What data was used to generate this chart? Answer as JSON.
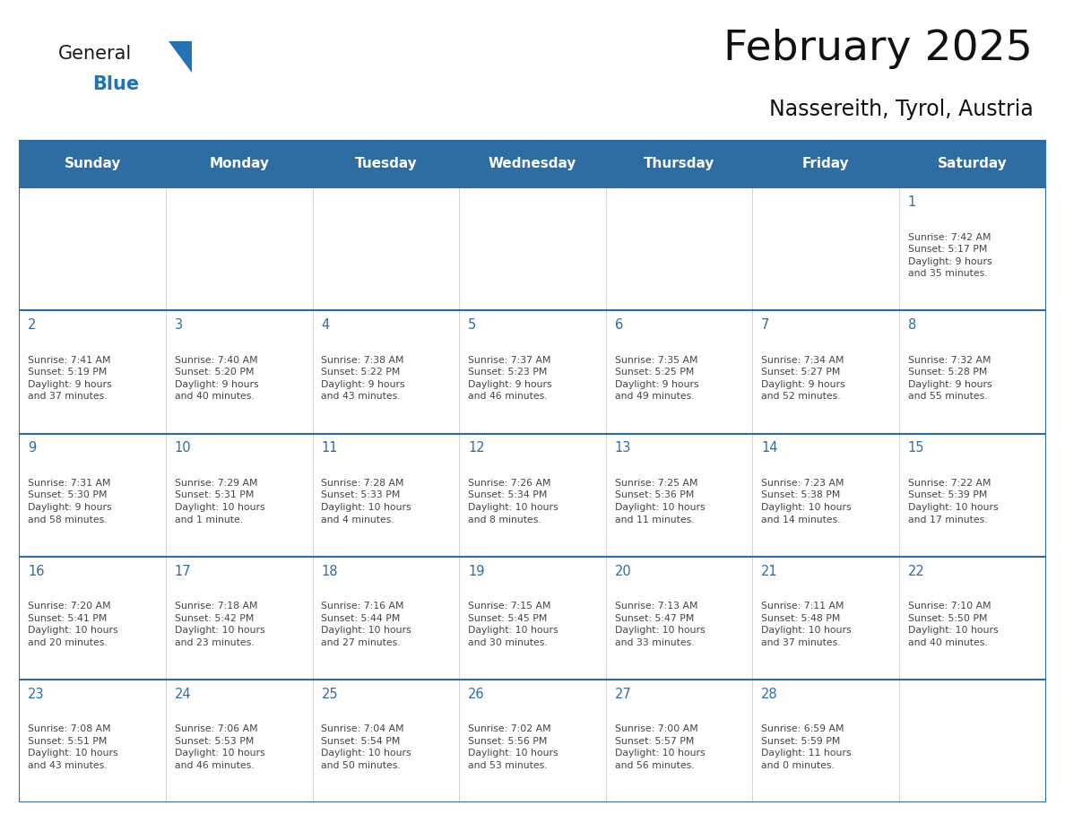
{
  "title": "February 2025",
  "subtitle": "Nassereith, Tyrol, Austria",
  "header_bg": "#2E6DA4",
  "header_text_color": "#FFFFFF",
  "cell_bg": "#FFFFFF",
  "day_number_color": "#2E6DA4",
  "text_color": "#444444",
  "week_border_color": "#2E6DA4",
  "cell_border_color": "#CCCCCC",
  "days_of_week": [
    "Sunday",
    "Monday",
    "Tuesday",
    "Wednesday",
    "Thursday",
    "Friday",
    "Saturday"
  ],
  "weeks": [
    [
      {
        "day": null,
        "info": null
      },
      {
        "day": null,
        "info": null
      },
      {
        "day": null,
        "info": null
      },
      {
        "day": null,
        "info": null
      },
      {
        "day": null,
        "info": null
      },
      {
        "day": null,
        "info": null
      },
      {
        "day": 1,
        "info": "Sunrise: 7:42 AM\nSunset: 5:17 PM\nDaylight: 9 hours\nand 35 minutes."
      }
    ],
    [
      {
        "day": 2,
        "info": "Sunrise: 7:41 AM\nSunset: 5:19 PM\nDaylight: 9 hours\nand 37 minutes."
      },
      {
        "day": 3,
        "info": "Sunrise: 7:40 AM\nSunset: 5:20 PM\nDaylight: 9 hours\nand 40 minutes."
      },
      {
        "day": 4,
        "info": "Sunrise: 7:38 AM\nSunset: 5:22 PM\nDaylight: 9 hours\nand 43 minutes."
      },
      {
        "day": 5,
        "info": "Sunrise: 7:37 AM\nSunset: 5:23 PM\nDaylight: 9 hours\nand 46 minutes."
      },
      {
        "day": 6,
        "info": "Sunrise: 7:35 AM\nSunset: 5:25 PM\nDaylight: 9 hours\nand 49 minutes."
      },
      {
        "day": 7,
        "info": "Sunrise: 7:34 AM\nSunset: 5:27 PM\nDaylight: 9 hours\nand 52 minutes."
      },
      {
        "day": 8,
        "info": "Sunrise: 7:32 AM\nSunset: 5:28 PM\nDaylight: 9 hours\nand 55 minutes."
      }
    ],
    [
      {
        "day": 9,
        "info": "Sunrise: 7:31 AM\nSunset: 5:30 PM\nDaylight: 9 hours\nand 58 minutes."
      },
      {
        "day": 10,
        "info": "Sunrise: 7:29 AM\nSunset: 5:31 PM\nDaylight: 10 hours\nand 1 minute."
      },
      {
        "day": 11,
        "info": "Sunrise: 7:28 AM\nSunset: 5:33 PM\nDaylight: 10 hours\nand 4 minutes."
      },
      {
        "day": 12,
        "info": "Sunrise: 7:26 AM\nSunset: 5:34 PM\nDaylight: 10 hours\nand 8 minutes."
      },
      {
        "day": 13,
        "info": "Sunrise: 7:25 AM\nSunset: 5:36 PM\nDaylight: 10 hours\nand 11 minutes."
      },
      {
        "day": 14,
        "info": "Sunrise: 7:23 AM\nSunset: 5:38 PM\nDaylight: 10 hours\nand 14 minutes."
      },
      {
        "day": 15,
        "info": "Sunrise: 7:22 AM\nSunset: 5:39 PM\nDaylight: 10 hours\nand 17 minutes."
      }
    ],
    [
      {
        "day": 16,
        "info": "Sunrise: 7:20 AM\nSunset: 5:41 PM\nDaylight: 10 hours\nand 20 minutes."
      },
      {
        "day": 17,
        "info": "Sunrise: 7:18 AM\nSunset: 5:42 PM\nDaylight: 10 hours\nand 23 minutes."
      },
      {
        "day": 18,
        "info": "Sunrise: 7:16 AM\nSunset: 5:44 PM\nDaylight: 10 hours\nand 27 minutes."
      },
      {
        "day": 19,
        "info": "Sunrise: 7:15 AM\nSunset: 5:45 PM\nDaylight: 10 hours\nand 30 minutes."
      },
      {
        "day": 20,
        "info": "Sunrise: 7:13 AM\nSunset: 5:47 PM\nDaylight: 10 hours\nand 33 minutes."
      },
      {
        "day": 21,
        "info": "Sunrise: 7:11 AM\nSunset: 5:48 PM\nDaylight: 10 hours\nand 37 minutes."
      },
      {
        "day": 22,
        "info": "Sunrise: 7:10 AM\nSunset: 5:50 PM\nDaylight: 10 hours\nand 40 minutes."
      }
    ],
    [
      {
        "day": 23,
        "info": "Sunrise: 7:08 AM\nSunset: 5:51 PM\nDaylight: 10 hours\nand 43 minutes."
      },
      {
        "day": 24,
        "info": "Sunrise: 7:06 AM\nSunset: 5:53 PM\nDaylight: 10 hours\nand 46 minutes."
      },
      {
        "day": 25,
        "info": "Sunrise: 7:04 AM\nSunset: 5:54 PM\nDaylight: 10 hours\nand 50 minutes."
      },
      {
        "day": 26,
        "info": "Sunrise: 7:02 AM\nSunset: 5:56 PM\nDaylight: 10 hours\nand 53 minutes."
      },
      {
        "day": 27,
        "info": "Sunrise: 7:00 AM\nSunset: 5:57 PM\nDaylight: 10 hours\nand 56 minutes."
      },
      {
        "day": 28,
        "info": "Sunrise: 6:59 AM\nSunset: 5:59 PM\nDaylight: 11 hours\nand 0 minutes."
      },
      {
        "day": null,
        "info": null
      }
    ]
  ],
  "logo_color_general": "#1a1a1a",
  "logo_color_blue": "#2472B3"
}
